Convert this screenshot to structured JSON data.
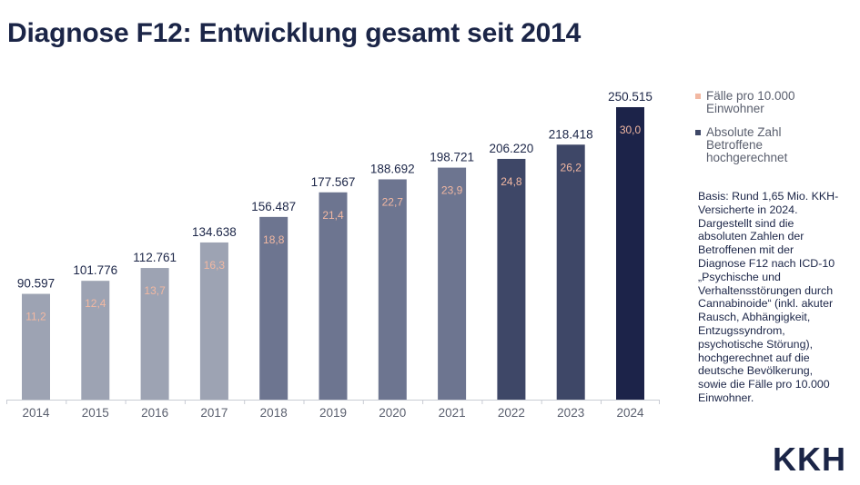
{
  "chart_data": {
    "type": "bar",
    "title": "Diagnose F12: Entwicklung gesamt seit 2014",
    "categories": [
      "2014",
      "2015",
      "2016",
      "2017",
      "2018",
      "2019",
      "2020",
      "2021",
      "2022",
      "2023",
      "2024"
    ],
    "series": [
      {
        "name": "Absolute Zahl Betroffene hochgerechnet",
        "values": [
          90597,
          101776,
          112761,
          134638,
          156487,
          177567,
          188692,
          198721,
          206220,
          218418,
          250515
        ],
        "labels": [
          "90.597",
          "101.776",
          "112.761",
          "134.638",
          "156.487",
          "177.567",
          "188.692",
          "198.721",
          "206.220",
          "218.418",
          "250.515"
        ]
      },
      {
        "name": "Fälle pro 10.000 Einwohner",
        "values": [
          11.2,
          12.4,
          13.7,
          16.3,
          18.8,
          21.4,
          22.7,
          23.9,
          24.8,
          26.2,
          30.0
        ],
        "labels": [
          "11,2",
          "12,4",
          "13,7",
          "16,3",
          "18,8",
          "21,4",
          "22,7",
          "23,9",
          "24,8",
          "26,2",
          "30,0"
        ]
      }
    ],
    "ylim": [
      0,
      250515
    ],
    "grid": false,
    "legend_position": "right",
    "bar_colors": [
      "#9da3b3",
      "#9da3b3",
      "#9da3b3",
      "#9da3b3",
      "#6d7590",
      "#6d7590",
      "#6d7590",
      "#6d7590",
      "#3e4767",
      "#3e4767",
      "#1c2349"
    ],
    "rate_label_color": "#f2b8a2"
  },
  "legend": {
    "rate": {
      "label": "Fälle pro 10.000 Einwohner",
      "color": "#f2b8a2"
    },
    "absolute": {
      "label": "Absolute Zahl Betroffene hochgerechnet",
      "color": "#3e4767"
    }
  },
  "note": "Basis: Rund 1,65 Mio. KKH-Versicherte in 2024. Dargestellt sind die absoluten Zahlen der Betroffenen mit der Diagnose F12 nach ICD-10 „Psychische und Verhaltensstörungen durch Cannabinoide“ (inkl. akuter Rausch, Abhängigkeit, Entzugssyndrom, psychotische Störung), hochgerechnet auf die deutsche Bevölkerung, sowie die Fälle pro 10.000 Einwohner.",
  "logo": "KKH"
}
